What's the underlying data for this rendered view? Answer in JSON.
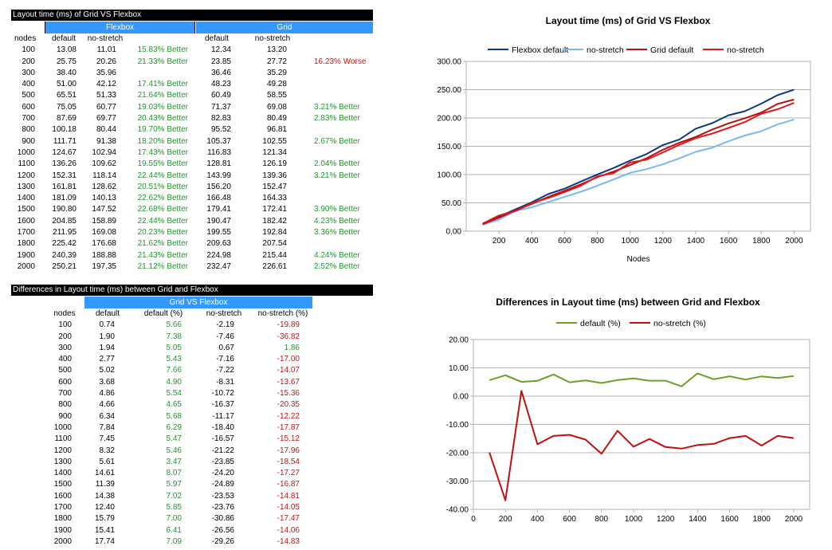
{
  "table1": {
    "title": "Layout time (ms) of Grid VS Flexbox",
    "group_flexbox": "Flexbox",
    "group_grid": "Grid",
    "headers": [
      "nodes",
      "default",
      "no-stretch",
      "default",
      "no-stretch"
    ],
    "rows": [
      {
        "nodes": "100",
        "fd": "13.08",
        "fn": "11.01",
        "fb": "15.83% Better",
        "gd": "12.34",
        "gn": "13.20",
        "gb": "",
        "gbc": ""
      },
      {
        "nodes": "200",
        "fd": "25.75",
        "fn": "20.26",
        "fb": "21.33% Better",
        "gd": "23.85",
        "gn": "27.72",
        "gb": "16.23% Worse",
        "gbc": "red"
      },
      {
        "nodes": "300",
        "fd": "38.40",
        "fn": "35.96",
        "fb": "",
        "gd": "36.46",
        "gn": "35.29",
        "gb": "",
        "gbc": ""
      },
      {
        "nodes": "400",
        "fd": "51.00",
        "fn": "42.12",
        "fb": "17.41% Better",
        "gd": "48.23",
        "gn": "49.28",
        "gb": "",
        "gbc": ""
      },
      {
        "nodes": "500",
        "fd": "65.51",
        "fn": "51.33",
        "fb": "21.64% Better",
        "gd": "60.49",
        "gn": "58.55",
        "gb": "",
        "gbc": ""
      },
      {
        "nodes": "600",
        "fd": "75.05",
        "fn": "60.77",
        "fb": "19.03% Better",
        "gd": "71.37",
        "gn": "69.08",
        "gb": "3.21% Better",
        "gbc": "green"
      },
      {
        "nodes": "700",
        "fd": "87.69",
        "fn": "69.77",
        "fb": "20.43% Better",
        "gd": "82.83",
        "gn": "80.49",
        "gb": "2.83% Better",
        "gbc": "green"
      },
      {
        "nodes": "800",
        "fd": "100.18",
        "fn": "80.44",
        "fb": "19.70% Better",
        "gd": "95.52",
        "gn": "96.81",
        "gb": "",
        "gbc": ""
      },
      {
        "nodes": "900",
        "fd": "111.71",
        "fn": "91.38",
        "fb": "18.20% Better",
        "gd": "105.37",
        "gn": "102.55",
        "gb": "2.67% Better",
        "gbc": "green"
      },
      {
        "nodes": "1000",
        "fd": "124.67",
        "fn": "102.94",
        "fb": "17.43% Better",
        "gd": "116.83",
        "gn": "121.34",
        "gb": "",
        "gbc": ""
      },
      {
        "nodes": "1100",
        "fd": "136.26",
        "fn": "109.62",
        "fb": "19.55% Better",
        "gd": "128.81",
        "gn": "126.19",
        "gb": "2.04% Better",
        "gbc": "green"
      },
      {
        "nodes": "1200",
        "fd": "152.31",
        "fn": "118.14",
        "fb": "22.44% Better",
        "gd": "143.99",
        "gn": "139.36",
        "gb": "3.21% Better",
        "gbc": "green"
      },
      {
        "nodes": "1300",
        "fd": "161.81",
        "fn": "128.62",
        "fb": "20.51% Better",
        "gd": "156.20",
        "gn": "152.47",
        "gb": "",
        "gbc": ""
      },
      {
        "nodes": "1400",
        "fd": "181.09",
        "fn": "140.13",
        "fb": "22.62% Better",
        "gd": "166.48",
        "gn": "164.33",
        "gb": "",
        "gbc": ""
      },
      {
        "nodes": "1500",
        "fd": "190.80",
        "fn": "147.52",
        "fb": "22.68% Better",
        "gd": "179.41",
        "gn": "172.41",
        "gb": "3.90% Better",
        "gbc": "green"
      },
      {
        "nodes": "1600",
        "fd": "204.85",
        "fn": "158.89",
        "fb": "22.44% Better",
        "gd": "190.47",
        "gn": "182.42",
        "gb": "4.23% Better",
        "gbc": "green"
      },
      {
        "nodes": "1700",
        "fd": "211.95",
        "fn": "169.08",
        "fb": "20.23% Better",
        "gd": "199.55",
        "gn": "192.84",
        "gb": "3.36% Better",
        "gbc": "green"
      },
      {
        "nodes": "1800",
        "fd": "225.42",
        "fn": "176.68",
        "fb": "21.62% Better",
        "gd": "209.63",
        "gn": "207.54",
        "gb": "",
        "gbc": ""
      },
      {
        "nodes": "1900",
        "fd": "240.39",
        "fn": "188.88",
        "fb": "21.43% Better",
        "gd": "224.98",
        "gn": "215.44",
        "gb": "4.24% Better",
        "gbc": "green"
      },
      {
        "nodes": "2000",
        "fd": "250.21",
        "fn": "197.35",
        "fb": "21.12% Better",
        "gd": "232.47",
        "gn": "226.61",
        "gb": "2.52% Better",
        "gbc": "green"
      }
    ]
  },
  "table2": {
    "title": "Differences in Layout time (ms) between Grid and Flexbox",
    "group": "Grid VS Flexbox",
    "headers": [
      "nodes",
      "default",
      "default (%)",
      "no-stretch",
      "no-stretch (%)"
    ],
    "rows": [
      {
        "nodes": "100",
        "d": "0.74",
        "dp": "5.66",
        "n": "-2.19",
        "np": "-19.89",
        "npc": "red"
      },
      {
        "nodes": "200",
        "d": "1.90",
        "dp": "7.38",
        "n": "-7.46",
        "np": "-36.82",
        "npc": "red"
      },
      {
        "nodes": "300",
        "d": "1.94",
        "dp": "5.05",
        "n": "0.67",
        "np": "1.86",
        "npc": "green"
      },
      {
        "nodes": "400",
        "d": "2.77",
        "dp": "5.43",
        "n": "-7.16",
        "np": "-17.00",
        "npc": "red"
      },
      {
        "nodes": "500",
        "d": "5.02",
        "dp": "7.66",
        "n": "-7.22",
        "np": "-14.07",
        "npc": "red"
      },
      {
        "nodes": "600",
        "d": "3.68",
        "dp": "4.90",
        "n": "-8.31",
        "np": "-13.67",
        "npc": "red"
      },
      {
        "nodes": "700",
        "d": "4.86",
        "dp": "5.54",
        "n": "-10.72",
        "np": "-15.36",
        "npc": "red"
      },
      {
        "nodes": "800",
        "d": "4.66",
        "dp": "4.65",
        "n": "-16.37",
        "np": "-20.35",
        "npc": "red"
      },
      {
        "nodes": "900",
        "d": "6.34",
        "dp": "5.68",
        "n": "-11.17",
        "np": "-12.22",
        "npc": "red"
      },
      {
        "nodes": "1000",
        "d": "7.84",
        "dp": "6.29",
        "n": "-18.40",
        "np": "-17.87",
        "npc": "red"
      },
      {
        "nodes": "1100",
        "d": "7.45",
        "dp": "5.47",
        "n": "-16.57",
        "np": "-15.12",
        "npc": "red"
      },
      {
        "nodes": "1200",
        "d": "8.32",
        "dp": "5.46",
        "n": "-21.22",
        "np": "-17.96",
        "npc": "red"
      },
      {
        "nodes": "1300",
        "d": "5.61",
        "dp": "3.47",
        "n": "-23.85",
        "np": "-18.54",
        "npc": "red"
      },
      {
        "nodes": "1400",
        "d": "14.61",
        "dp": "8.07",
        "n": "-24.20",
        "np": "-17.27",
        "npc": "red"
      },
      {
        "nodes": "1500",
        "d": "11.39",
        "dp": "5.97",
        "n": "-24.89",
        "np": "-16.87",
        "npc": "red"
      },
      {
        "nodes": "1600",
        "d": "14.38",
        "dp": "7.02",
        "n": "-23.53",
        "np": "-14.81",
        "npc": "red"
      },
      {
        "nodes": "1700",
        "d": "12.40",
        "dp": "5.85",
        "n": "-23.76",
        "np": "-14.05",
        "npc": "red"
      },
      {
        "nodes": "1800",
        "d": "15.79",
        "dp": "7.00",
        "n": "-30.86",
        "np": "-17.47",
        "npc": "red"
      },
      {
        "nodes": "1900",
        "d": "15.41",
        "dp": "6.41",
        "n": "-26.56",
        "np": "-14.06",
        "npc": "red"
      },
      {
        "nodes": "2000",
        "d": "17.74",
        "dp": "7.09",
        "n": "-29.26",
        "np": "-14.83",
        "npc": "red"
      }
    ]
  },
  "colors": {
    "better": "#22962c",
    "worse": "#cc1111",
    "band": "#3399ff",
    "flex_default": "#0b3a7a",
    "flex_nostretch": "#7ab8ef",
    "grid_default": "#b80f0f",
    "grid_nostretch": "#e01818",
    "diff_default": "#6aa121",
    "diff_nostretch": "#c01010"
  },
  "chart_data": [
    {
      "type": "line",
      "title": "Layout time (ms) of Grid VS Flexbox",
      "xlabel": "Nodes",
      "ylabel": "",
      "x": [
        100,
        200,
        300,
        400,
        500,
        600,
        700,
        800,
        900,
        1000,
        1100,
        1200,
        1300,
        1400,
        1500,
        1600,
        1700,
        1800,
        1900,
        2000
      ],
      "xticks": [
        "200",
        "400",
        "600",
        "800",
        "1000",
        "1200",
        "1400",
        "1600",
        "1800",
        "2000"
      ],
      "ylim": [
        0,
        300
      ],
      "yticks": [
        "0.00",
        "50.00",
        "100.00",
        "150.00",
        "200.00",
        "250.00",
        "300.00"
      ],
      "grid": true,
      "legend": "top",
      "series": [
        {
          "name": "Flexbox default",
          "color": "flex_default",
          "values": [
            13.08,
            25.75,
            38.4,
            51.0,
            65.51,
            75.05,
            87.69,
            100.18,
            111.71,
            124.67,
            136.26,
            152.31,
            161.81,
            181.09,
            190.8,
            204.85,
            211.95,
            225.42,
            240.39,
            250.21
          ]
        },
        {
          "name": "no-stretch",
          "color": "flex_nostretch",
          "values": [
            11.01,
            20.26,
            35.96,
            42.12,
            51.33,
            60.77,
            69.77,
            80.44,
            91.38,
            102.94,
            109.62,
            118.14,
            128.62,
            140.13,
            147.52,
            158.89,
            169.08,
            176.68,
            188.88,
            197.35
          ]
        },
        {
          "name": "Grid default",
          "color": "grid_default",
          "values": [
            12.34,
            23.85,
            36.46,
            48.23,
            60.49,
            71.37,
            82.83,
            95.52,
            105.37,
            116.83,
            128.81,
            143.99,
            156.2,
            166.48,
            179.41,
            190.47,
            199.55,
            209.63,
            224.98,
            232.47
          ]
        },
        {
          "name": "no-stretch",
          "color": "grid_nostretch",
          "values": [
            13.2,
            27.72,
            35.29,
            49.28,
            58.55,
            69.08,
            80.49,
            96.81,
            102.55,
            121.34,
            126.19,
            139.36,
            152.47,
            164.33,
            172.41,
            182.42,
            192.84,
            207.54,
            215.44,
            226.61
          ]
        }
      ]
    },
    {
      "type": "line",
      "title": "Differences in Layout time (ms) between Grid and Flexbox",
      "xlabel": "",
      "ylabel": "",
      "x": [
        100,
        200,
        300,
        400,
        500,
        600,
        700,
        800,
        900,
        1000,
        1100,
        1200,
        1300,
        1400,
        1500,
        1600,
        1700,
        1800,
        1900,
        2000
      ],
      "xticks": [
        "0",
        "200",
        "400",
        "600",
        "800",
        "1000",
        "1200",
        "1400",
        "1600",
        "1800",
        "2000"
      ],
      "ylim": [
        -40,
        20
      ],
      "yticks": [
        "-40.00",
        "-30.00",
        "-20.00",
        "-10.00",
        "0.00",
        "10.00",
        "20.00"
      ],
      "grid": true,
      "legend": "top",
      "series": [
        {
          "name": "default (%)",
          "color": "diff_default",
          "values": [
            5.66,
            7.38,
            5.05,
            5.43,
            7.66,
            4.9,
            5.54,
            4.65,
            5.68,
            6.29,
            5.47,
            5.46,
            3.47,
            8.07,
            5.97,
            7.02,
            5.85,
            7.0,
            6.41,
            7.09
          ]
        },
        {
          "name": "no-stretch (%)",
          "color": "diff_nostretch",
          "values": [
            -19.89,
            -36.82,
            1.86,
            -17.0,
            -14.07,
            -13.67,
            -15.36,
            -20.35,
            -12.22,
            -17.87,
            -15.12,
            -17.96,
            -18.54,
            -17.27,
            -16.87,
            -14.81,
            -14.05,
            -17.47,
            -14.06,
            -14.83
          ]
        }
      ]
    }
  ]
}
